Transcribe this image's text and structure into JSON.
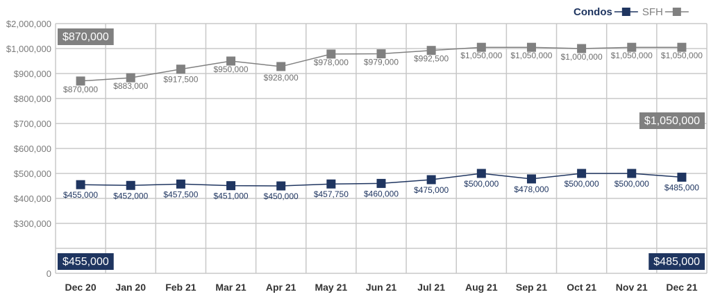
{
  "chart_data": {
    "type": "line",
    "title": "",
    "xlabel": "",
    "ylabel": "",
    "categories": [
      "Dec 20",
      "Jan 20",
      "Feb 21",
      "Mar 21",
      "Apr 21",
      "May 21",
      "Jun 21",
      "Jul 21",
      "Aug 21",
      "Sep 21",
      "Oct 21",
      "Nov 21",
      "Dec 21"
    ],
    "ylim": [
      0,
      2000000
    ],
    "y_ticks": [
      {
        "value": 0,
        "label": "0"
      },
      {
        "value": 200000,
        "label": ""
      },
      {
        "value": 300000,
        "label": "$300,000"
      },
      {
        "value": 400000,
        "label": "$400,000"
      },
      {
        "value": 500000,
        "label": "$500,000"
      },
      {
        "value": 600000,
        "label": "$600,000"
      },
      {
        "value": 700000,
        "label": "$700,000"
      },
      {
        "value": 800000,
        "label": "$800,000"
      },
      {
        "value": 900000,
        "label": "$900,000"
      },
      {
        "value": 1000000,
        "label": "$1,000,000"
      },
      {
        "value": 2000000,
        "label": "$2,000,000"
      }
    ],
    "grid": true,
    "legend_position": "top-right",
    "series": [
      {
        "name": "Condos",
        "color": "#1f3560",
        "values": [
          455000,
          452000,
          457500,
          451000,
          450000,
          457750,
          460000,
          475000,
          500000,
          478000,
          500000,
          500000,
          485000
        ],
        "labels": [
          "$455,000",
          "$452,000",
          "$457,500",
          "$451,000",
          "$450,000",
          "$457,750",
          "$460,000",
          "$475,000",
          "$500,000",
          "$478,000",
          "$500,000",
          "$500,000",
          "$485,000"
        ],
        "start_callout": "$455,000",
        "end_callout": "$485,000"
      },
      {
        "name": "SFH",
        "color": "#808080",
        "values": [
          870000,
          883000,
          917500,
          950000,
          928000,
          978000,
          979000,
          992500,
          1050000,
          1050000,
          1000000,
          1050000,
          1050000
        ],
        "labels": [
          "$870,000",
          "$883,000",
          "$917,500",
          "$950,000",
          "$928,000",
          "$978,000",
          "$979,000",
          "$992,500",
          "$1,050,000",
          "$1,050,000",
          "$1,000,000",
          "$1,050,000",
          "$1,050,000"
        ],
        "start_callout": "$870,000",
        "end_callout": "$1,050,000"
      }
    ]
  }
}
